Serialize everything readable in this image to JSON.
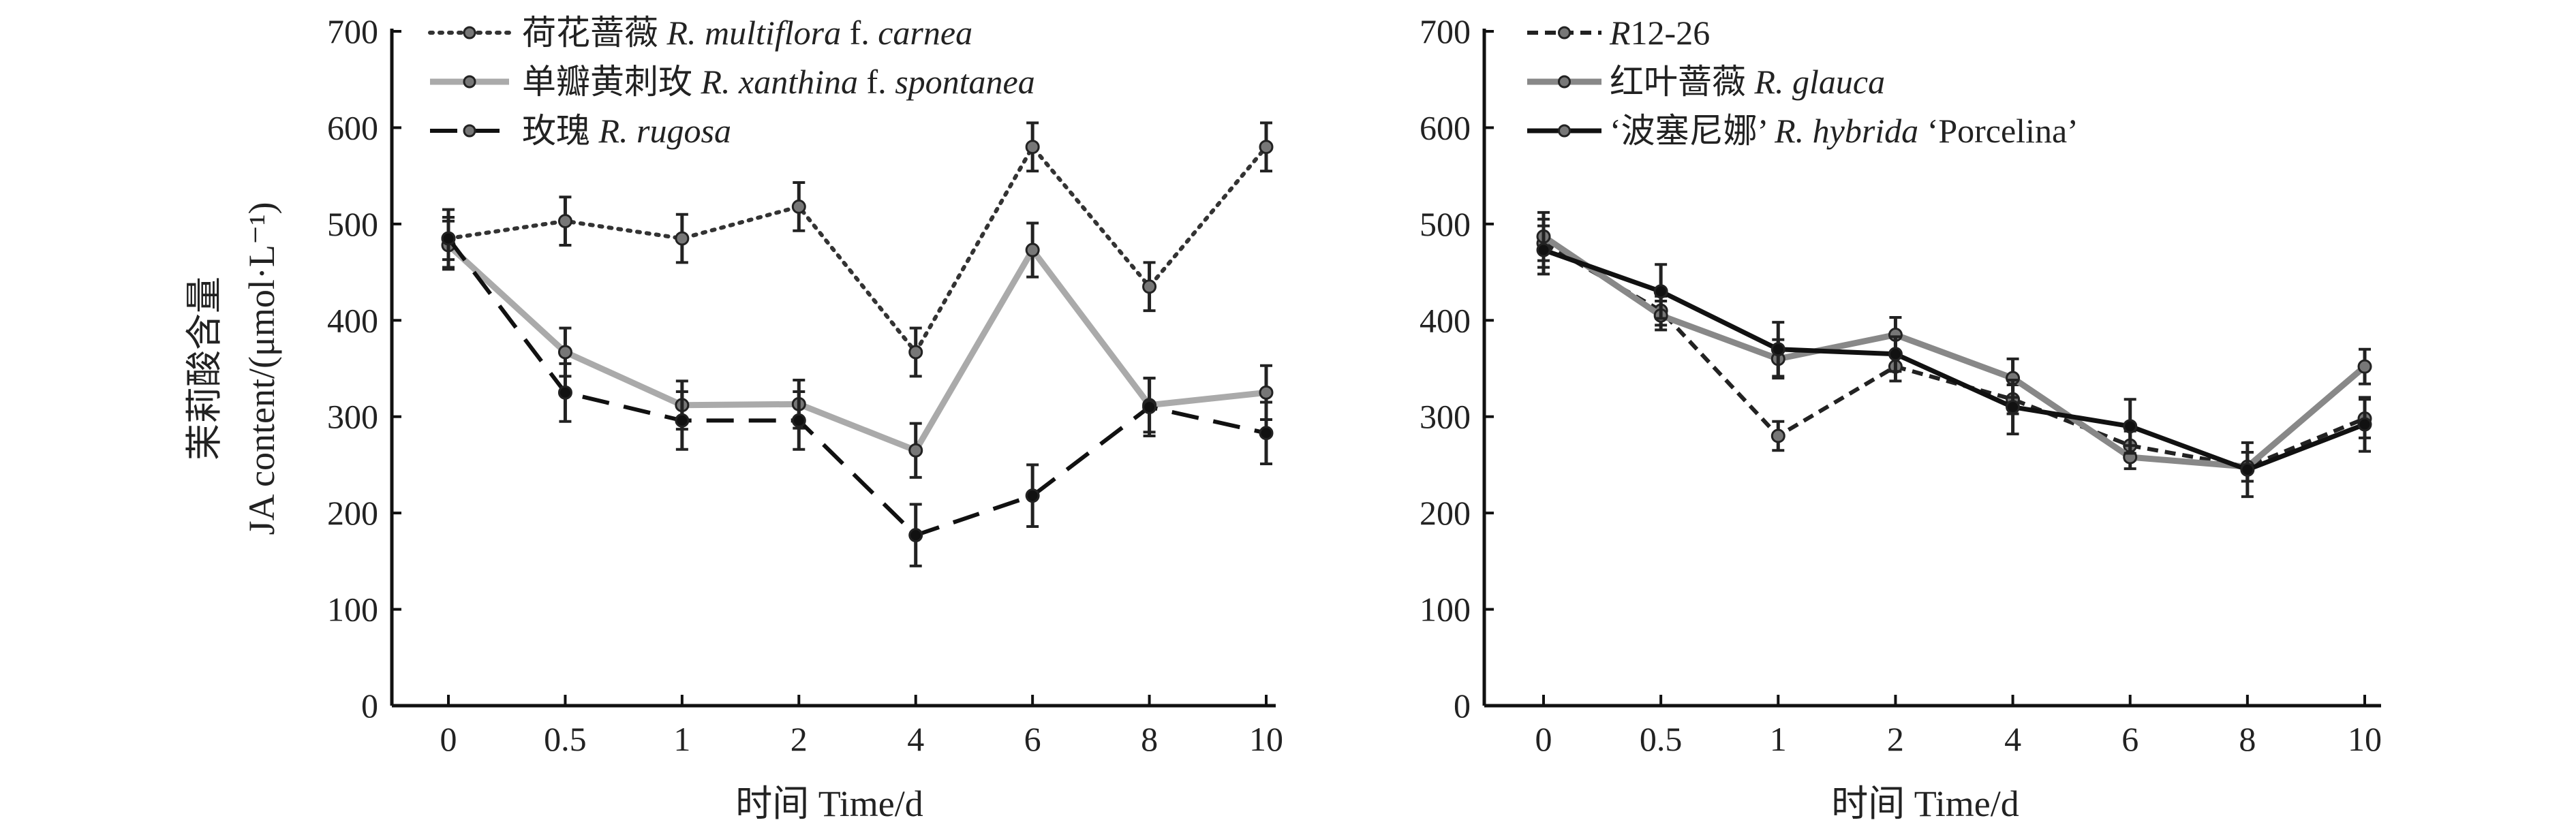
{
  "chart_data": [
    {
      "type": "line",
      "xlabel": "时间 Time/d",
      "ylabel_cn": "茉莉酸含量",
      "ylabel_en": "JA content/(μmol·L⁻¹)",
      "ylim": [
        0,
        700
      ],
      "yticks": [
        "0",
        "100",
        "200",
        "300",
        "400",
        "500",
        "600",
        "700"
      ],
      "categories": [
        "0",
        "0.5",
        "1",
        "2",
        "4",
        "6",
        "8",
        "10"
      ],
      "legend_position": "top-left",
      "series": [
        {
          "name": [
            {
              "t": "荷花蔷薇 "
            },
            {
              "t": "R. multiflora",
              "i": true
            },
            {
              "t": " f. "
            },
            {
              "t": "carnea",
              "i": true
            }
          ],
          "style": "dotted",
          "color": "#333333",
          "values": [
            485,
            503,
            485,
            518,
            367,
            580,
            435,
            580
          ],
          "errors": [
            22,
            25,
            25,
            25,
            25,
            25,
            25,
            25
          ]
        },
        {
          "name": [
            {
              "t": "单瓣黄刺玫 "
            },
            {
              "t": "R. xanthina",
              "i": true
            },
            {
              "t": " f. "
            },
            {
              "t": "spontanea",
              "i": true
            }
          ],
          "style": "solid",
          "color": "#aaaaaa",
          "values": [
            478,
            367,
            312,
            313,
            265,
            473,
            312,
            325
          ],
          "errors": [
            25,
            25,
            25,
            25,
            28,
            28,
            28,
            28
          ]
        },
        {
          "name": [
            {
              "t": "玫瑰 "
            },
            {
              "t": "R. rugosa",
              "i": true
            }
          ],
          "style": "dashed",
          "color": "#111111",
          "values": [
            485,
            325,
            296,
            296,
            177,
            218,
            310,
            283
          ],
          "errors": [
            30,
            30,
            30,
            30,
            32,
            32,
            30,
            32
          ]
        }
      ]
    },
    {
      "type": "line",
      "xlabel": "时间 Time/d",
      "ylim": [
        0,
        700
      ],
      "yticks": [
        "0",
        "100",
        "200",
        "300",
        "400",
        "500",
        "600",
        "700"
      ],
      "categories": [
        "0",
        "0.5",
        "1",
        "2",
        "4",
        "6",
        "8",
        "10"
      ],
      "legend_position": "top-left",
      "series": [
        {
          "name": [
            {
              "t": "R",
              "i": true
            },
            {
              "t": "12-26"
            }
          ],
          "style": "dashed-fine",
          "color": "#222222",
          "values": [
            480,
            410,
            280,
            352,
            318,
            270,
            248,
            298
          ],
          "errors": [
            25,
            15,
            15,
            15,
            15,
            15,
            15,
            20
          ]
        },
        {
          "name": [
            {
              "t": "红叶蔷薇 "
            },
            {
              "t": "R. glauca",
              "i": true
            }
          ],
          "style": "solid",
          "color": "#888888",
          "values": [
            487,
            405,
            360,
            385,
            340,
            258,
            248,
            352
          ],
          "errors": [
            25,
            15,
            20,
            18,
            20,
            12,
            15,
            18
          ]
        },
        {
          "name": [
            {
              "t": "‘波塞尼娜’ "
            },
            {
              "t": "R. hybrida",
              "i": true
            },
            {
              "t": " ‘Porcelina’"
            }
          ],
          "style": "solid-bold",
          "color": "#111111",
          "values": [
            473,
            430,
            370,
            365,
            310,
            290,
            245,
            292
          ],
          "errors": [
            25,
            28,
            28,
            18,
            28,
            28,
            28,
            28
          ]
        }
      ]
    }
  ]
}
